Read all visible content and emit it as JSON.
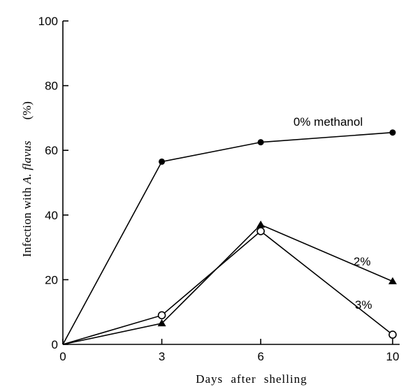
{
  "chart_data": {
    "type": "line",
    "xlabel": "Days after shelling",
    "ylabel": {
      "prefix": "Infection with ",
      "italic": "A. flavus",
      "unit": "(%)"
    },
    "x_ticks": [
      0,
      3,
      6,
      10
    ],
    "y_ticks": [
      0,
      20,
      40,
      60,
      80,
      100
    ],
    "xlim": [
      0,
      10
    ],
    "ylim": [
      0,
      100
    ],
    "grid": false,
    "series": [
      {
        "name": "0% methanol",
        "marker": "filled-circle",
        "x": [
          0,
          3,
          6,
          10
        ],
        "y": [
          0,
          56.5,
          62.5,
          65.5
        ]
      },
      {
        "name": "2%",
        "marker": "filled-triangle",
        "x": [
          0,
          3,
          6,
          10
        ],
        "y": [
          0,
          6.5,
          37,
          19.5
        ]
      },
      {
        "name": "3%",
        "marker": "open-circle",
        "x": [
          0,
          3,
          6,
          10
        ],
        "y": [
          0,
          9,
          35,
          3
        ]
      }
    ]
  }
}
